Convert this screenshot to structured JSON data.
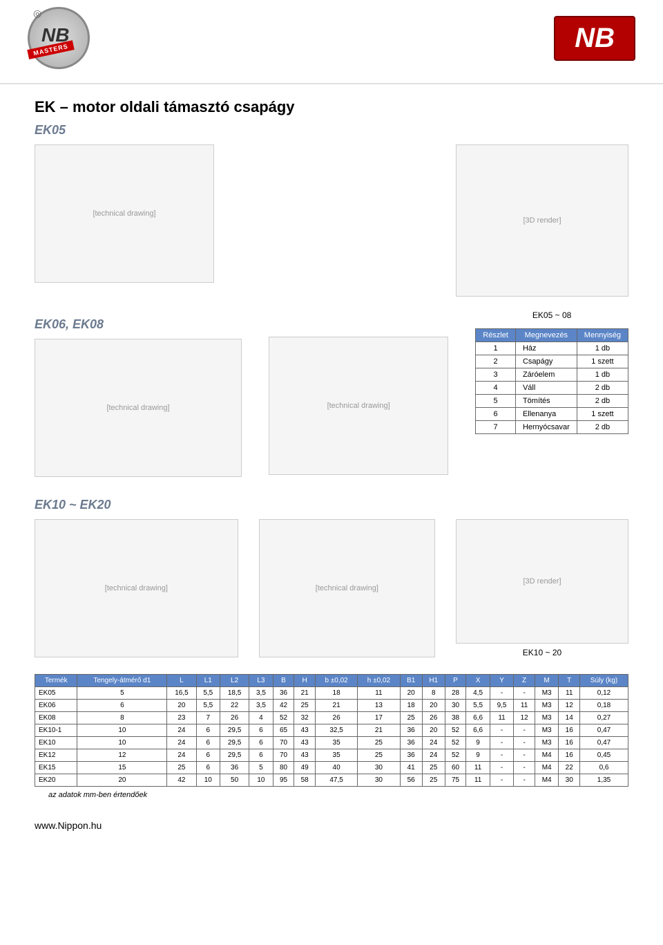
{
  "logos": {
    "nb_initials": "NB",
    "masters_text": "MASTERS",
    "nb_right": "NB"
  },
  "title": "EK – motor oldali támasztó csapágy",
  "section1": {
    "subtitle1": "EK05",
    "subtitle2": "EK06, EK08",
    "render_label": "EK05 ~ 08"
  },
  "parts_table": {
    "headers": [
      "Részlet",
      "Megnevezés",
      "Mennyiség"
    ],
    "rows": [
      [
        "1",
        "Ház",
        "1 db"
      ],
      [
        "2",
        "Csapágy",
        "1 szett"
      ],
      [
        "3",
        "Záróelem",
        "1 db"
      ],
      [
        "4",
        "Váll",
        "2 db"
      ],
      [
        "5",
        "Tömítés",
        "2 db"
      ],
      [
        "6",
        "Ellenanya",
        "1 szett"
      ],
      [
        "7",
        "Hernyócsavar",
        "2 db"
      ]
    ]
  },
  "section2": {
    "subtitle": "EK10 ~ EK20",
    "render_label": "EK10 ~ 20"
  },
  "spec_table": {
    "headers": [
      "Termék",
      "Tengely-átmérő d1",
      "L",
      "L1",
      "L2",
      "L3",
      "B",
      "H",
      "b ±0,02",
      "h ±0,02",
      "B1",
      "H1",
      "P",
      "X",
      "Y",
      "Z",
      "M",
      "T",
      "Súly (kg)"
    ],
    "rows": [
      [
        "EK05",
        "5",
        "16,5",
        "5,5",
        "18,5",
        "3,5",
        "36",
        "21",
        "18",
        "11",
        "20",
        "8",
        "28",
        "4,5",
        "-",
        "-",
        "M3",
        "11",
        "0,12"
      ],
      [
        "EK06",
        "6",
        "20",
        "5,5",
        "22",
        "3,5",
        "42",
        "25",
        "21",
        "13",
        "18",
        "20",
        "30",
        "5,5",
        "9,5",
        "11",
        "M3",
        "12",
        "0,18"
      ],
      [
        "EK08",
        "8",
        "23",
        "7",
        "26",
        "4",
        "52",
        "32",
        "26",
        "17",
        "25",
        "26",
        "38",
        "6,6",
        "11",
        "12",
        "M3",
        "14",
        "0,27"
      ],
      [
        "EK10-1",
        "10",
        "24",
        "6",
        "29,5",
        "6",
        "65",
        "43",
        "32,5",
        "21",
        "36",
        "20",
        "52",
        "6,6",
        "-",
        "-",
        "M3",
        "16",
        "0,47"
      ],
      [
        "EK10",
        "10",
        "24",
        "6",
        "29,5",
        "6",
        "70",
        "43",
        "35",
        "25",
        "36",
        "24",
        "52",
        "9",
        "-",
        "-",
        "M3",
        "16",
        "0,47"
      ],
      [
        "EK12",
        "12",
        "24",
        "6",
        "29,5",
        "6",
        "70",
        "43",
        "35",
        "25",
        "36",
        "24",
        "52",
        "9",
        "-",
        "-",
        "M4",
        "16",
        "0,45"
      ],
      [
        "EK15",
        "15",
        "25",
        "6",
        "36",
        "5",
        "80",
        "49",
        "40",
        "30",
        "41",
        "25",
        "60",
        "11",
        "-",
        "-",
        "M4",
        "22",
        "0,6"
      ],
      [
        "EK20",
        "20",
        "42",
        "10",
        "50",
        "10",
        "95",
        "58",
        "47,5",
        "30",
        "56",
        "25",
        "75",
        "11",
        "-",
        "-",
        "M4",
        "30",
        "1,35"
      ]
    ]
  },
  "footnote": "az adatok mm-ben értendőek",
  "footer": "www.Nippon.hu",
  "placeholders": {
    "tech_drawing": "[technical drawing]",
    "render_3d": "[3D render]"
  },
  "colors": {
    "header_bg": "#5b85c7",
    "header_text": "#ffffff",
    "border": "#666666",
    "nb_bg": "#b30000",
    "subtitle_color": "#6b7a8f"
  }
}
